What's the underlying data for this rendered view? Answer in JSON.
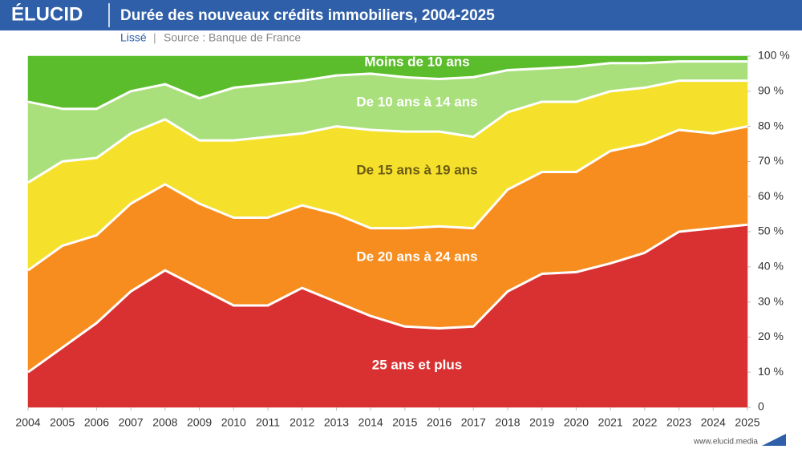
{
  "brand": "ÉLUCID",
  "footer": "www.elucid.media",
  "chart_data": {
    "type": "stacked-area",
    "title": "Durée des nouveaux crédits immobiliers, 2004-2025",
    "subtitle": "Lissé",
    "source": "Source : Banque de France",
    "x": [
      2004,
      2005,
      2006,
      2007,
      2008,
      2009,
      2010,
      2011,
      2012,
      2013,
      2014,
      2015,
      2016,
      2017,
      2018,
      2019,
      2020,
      2021,
      2022,
      2023,
      2024,
      2025
    ],
    "xlim": [
      2004,
      2025
    ],
    "xticks": [
      2004,
      2005,
      2006,
      2007,
      2008,
      2009,
      2010,
      2011,
      2012,
      2013,
      2014,
      2015,
      2016,
      2017,
      2018,
      2019,
      2020,
      2021,
      2022,
      2023,
      2024,
      2025
    ],
    "ylim": [
      0,
      100
    ],
    "yticks": [
      0,
      {
        "value": 10,
        "label": "10 %"
      },
      {
        "value": 20,
        "label": "20 %"
      },
      {
        "value": 30,
        "label": "30 %"
      },
      {
        "value": 40,
        "label": "40 %"
      },
      {
        "value": 50,
        "label": "50 %"
      },
      {
        "value": 60,
        "label": "60 %"
      },
      {
        "value": 70,
        "label": "70 %"
      },
      {
        "value": 80,
        "label": "80 %"
      },
      {
        "value": 90,
        "label": "90 %"
      },
      {
        "value": 100,
        "label": "100 %"
      }
    ],
    "series": [
      {
        "name": "25 ans et plus",
        "color": "#d93131",
        "values": [
          10,
          17,
          24,
          33,
          39,
          34,
          29,
          29,
          34,
          30,
          26,
          23,
          22.5,
          23,
          33,
          38,
          38.5,
          41,
          44,
          50,
          51,
          52
        ]
      },
      {
        "name": "De 20 ans à 24 ans",
        "color": "#f78d1f",
        "values": [
          29,
          29,
          25,
          25,
          24.5,
          24,
          25,
          25,
          23.5,
          25,
          25,
          28,
          29,
          28,
          29,
          29,
          28.5,
          32,
          31,
          29,
          27,
          28
        ]
      },
      {
        "name": "De 15 ans à 19 ans",
        "color": "#f5e12b",
        "values": [
          25,
          24,
          22,
          20,
          18.5,
          18,
          22,
          23,
          20.5,
          25,
          28,
          27.5,
          27,
          26,
          22,
          20,
          20,
          17,
          16,
          14,
          15,
          13
        ]
      },
      {
        "name": "De 10 ans à 14 ans",
        "color": "#a9e07c",
        "values": [
          23,
          15,
          14,
          12,
          10,
          12,
          15,
          15,
          15,
          14.5,
          16,
          15.5,
          15,
          17,
          12,
          9.5,
          10,
          8,
          7,
          5.5,
          5.5,
          5.5
        ]
      },
      {
        "name": "Moins de 10 ans",
        "color": "#5cbd2c",
        "values": [
          13,
          15,
          15,
          10,
          8,
          12,
          9,
          8,
          7,
          5.5,
          5,
          6,
          6.5,
          6,
          4,
          3.5,
          3,
          2,
          2,
          1.5,
          1.5,
          1.5
        ]
      }
    ]
  }
}
